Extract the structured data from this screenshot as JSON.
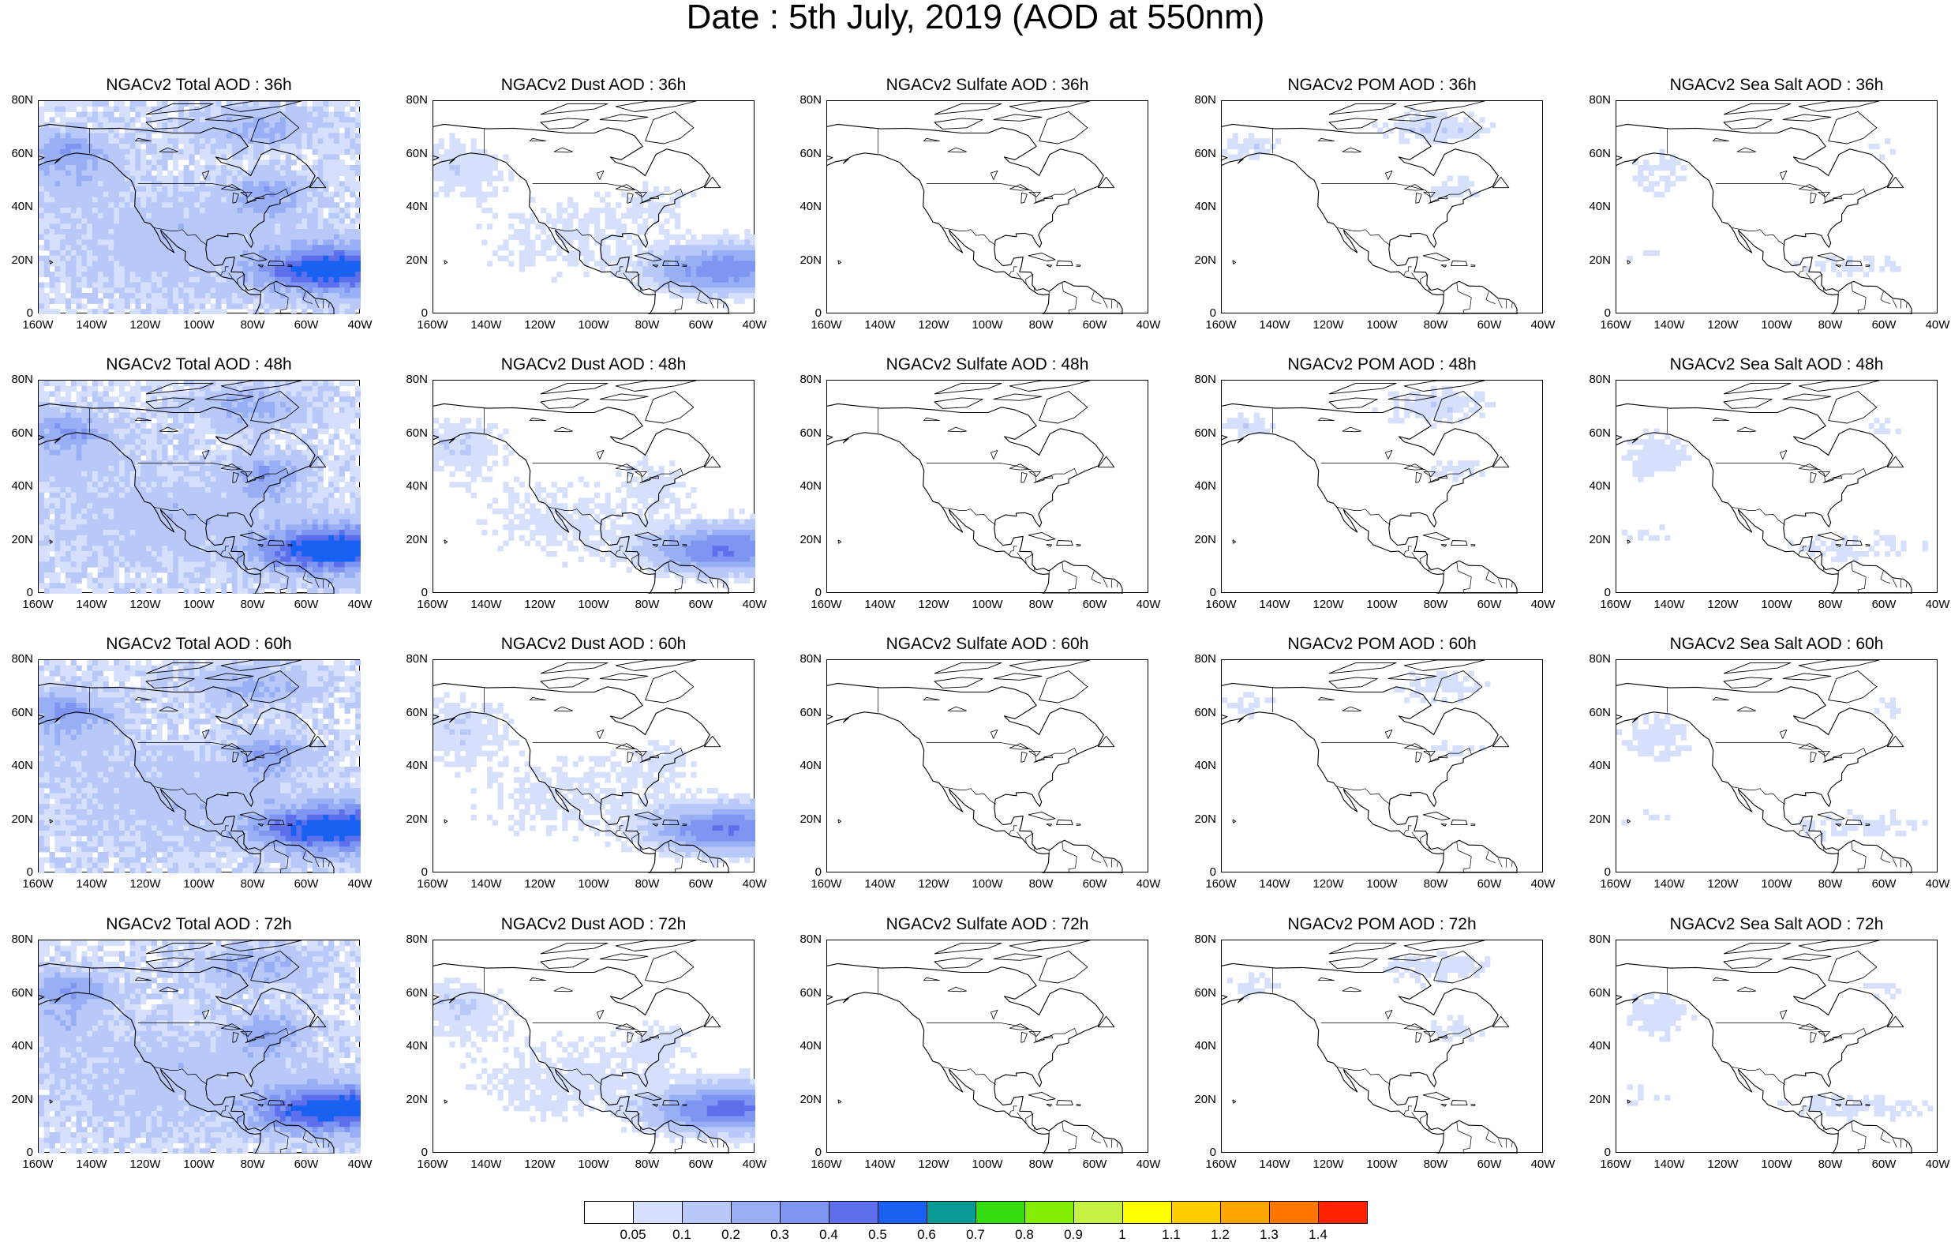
{
  "title": "Date : 5th July, 2019 (AOD at 550nm)",
  "x_tick_labels": [
    "160W",
    "140W",
    "120W",
    "100W",
    "80W",
    "60W",
    "40W"
  ],
  "y_tick_labels": [
    "80N",
    "60N",
    "40N",
    "20N",
    "0"
  ],
  "panels": [
    [
      {
        "title": "NGACv2 Total AOD : 36h",
        "species": "total",
        "level": 1.0
      },
      {
        "title": "NGACv2 Dust AOD : 36h",
        "species": "dust",
        "level": 0.7
      },
      {
        "title": "NGACv2 Sulfate AOD : 36h",
        "species": "sulfate",
        "level": 0.1
      },
      {
        "title": "NGACv2 POM AOD : 36h",
        "species": "pom",
        "level": 0.6
      },
      {
        "title": "NGACv2 Sea Salt AOD : 36h",
        "species": "seasalt",
        "level": 0.5
      }
    ],
    [
      {
        "title": "NGACv2 Total AOD : 48h",
        "species": "total",
        "level": 1.0
      },
      {
        "title": "NGACv2 Dust AOD : 48h",
        "species": "dust",
        "level": 0.75
      },
      {
        "title": "NGACv2 Sulfate AOD : 48h",
        "species": "sulfate",
        "level": 0.1
      },
      {
        "title": "NGACv2 POM AOD : 48h",
        "species": "pom",
        "level": 0.55
      },
      {
        "title": "NGACv2 Sea Salt AOD : 48h",
        "species": "seasalt",
        "level": 0.6
      }
    ],
    [
      {
        "title": "NGACv2 Total AOD : 60h",
        "species": "total",
        "level": 1.0
      },
      {
        "title": "NGACv2 Dust AOD : 60h",
        "species": "dust",
        "level": 0.75
      },
      {
        "title": "NGACv2 Sulfate AOD : 60h",
        "species": "sulfate",
        "level": 0.1
      },
      {
        "title": "NGACv2 POM AOD : 60h",
        "species": "pom",
        "level": 0.45
      },
      {
        "title": "NGACv2 Sea Salt AOD : 60h",
        "species": "seasalt",
        "level": 0.6
      }
    ],
    [
      {
        "title": "NGACv2 Total AOD : 72h",
        "species": "total",
        "level": 1.0
      },
      {
        "title": "NGACv2 Dust AOD : 72h",
        "species": "dust",
        "level": 0.8
      },
      {
        "title": "NGACv2 Sulfate AOD : 72h",
        "species": "sulfate",
        "level": 0.15
      },
      {
        "title": "NGACv2 POM AOD : 72h",
        "species": "pom",
        "level": 0.5
      },
      {
        "title": "NGACv2 Sea Salt  AOD : 72h",
        "species": "seasalt",
        "level": 0.65
      }
    ]
  ],
  "colorbar": {
    "labels": [
      "0.05",
      "0.1",
      "0.2",
      "0.3",
      "0.4",
      "0.5",
      "0.6",
      "0.7",
      "0.8",
      "0.9",
      "1",
      "1.1",
      "1.2",
      "1.3",
      "1.4"
    ],
    "colors": [
      "#ffffff",
      "#d6dffb",
      "#b8c8f8",
      "#98aff6",
      "#7e96f2",
      "#5e6fec",
      "#1861f1",
      "#0a9b97",
      "#34dc10",
      "#82ef05",
      "#c5f243",
      "#ffff00",
      "#ffce00",
      "#ffa600",
      "#ff7600",
      "#ff2200"
    ]
  }
}
